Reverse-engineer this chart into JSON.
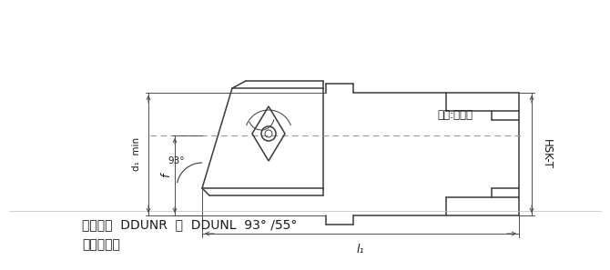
{
  "bg_color": "#ffffff",
  "line_color": "#3a3a3a",
  "dim_color": "#444444",
  "text_color": "#1a1a1a",
  "label_line1": "车刀刀体  DDUNR  ｜  DDUNL  93° /55°",
  "label_line2": "负前角刀片",
  "label_view": "视图:右款式",
  "label_hsk": "HSK-T",
  "label_d1": "d₁  min",
  "label_f": "f",
  "label_93": "93°",
  "label_l1": "l₁",
  "fig_width": 6.7,
  "fig_height": 2.97,
  "dpi": 100
}
